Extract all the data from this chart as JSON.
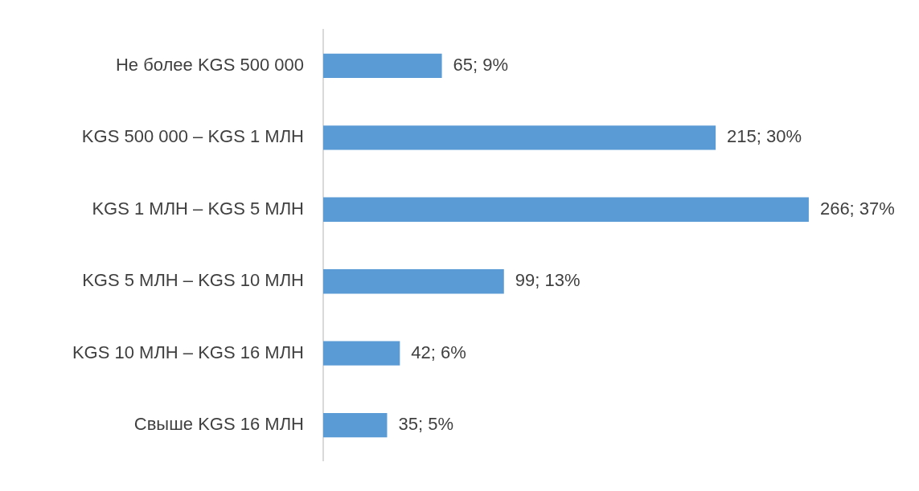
{
  "chart_data": {
    "type": "bar",
    "orientation": "horizontal",
    "categories": [
      "Не более KGS 500 000",
      "KGS 500 000 – KGS 1 МЛН",
      "KGS 1 МЛН – KGS 5 МЛН",
      "KGS 5 МЛН – KGS 10 МЛН",
      "KGS 10 МЛН – KGS 16 МЛН",
      "Свыше KGS 16 МЛН"
    ],
    "values": [
      65,
      215,
      266,
      99,
      42,
      35
    ],
    "value_labels": [
      "65; 9%",
      "215; 30%",
      "266; 37%",
      "99; 13%",
      "42; 6%",
      "35; 5%"
    ],
    "color": "#5b9bd5"
  }
}
